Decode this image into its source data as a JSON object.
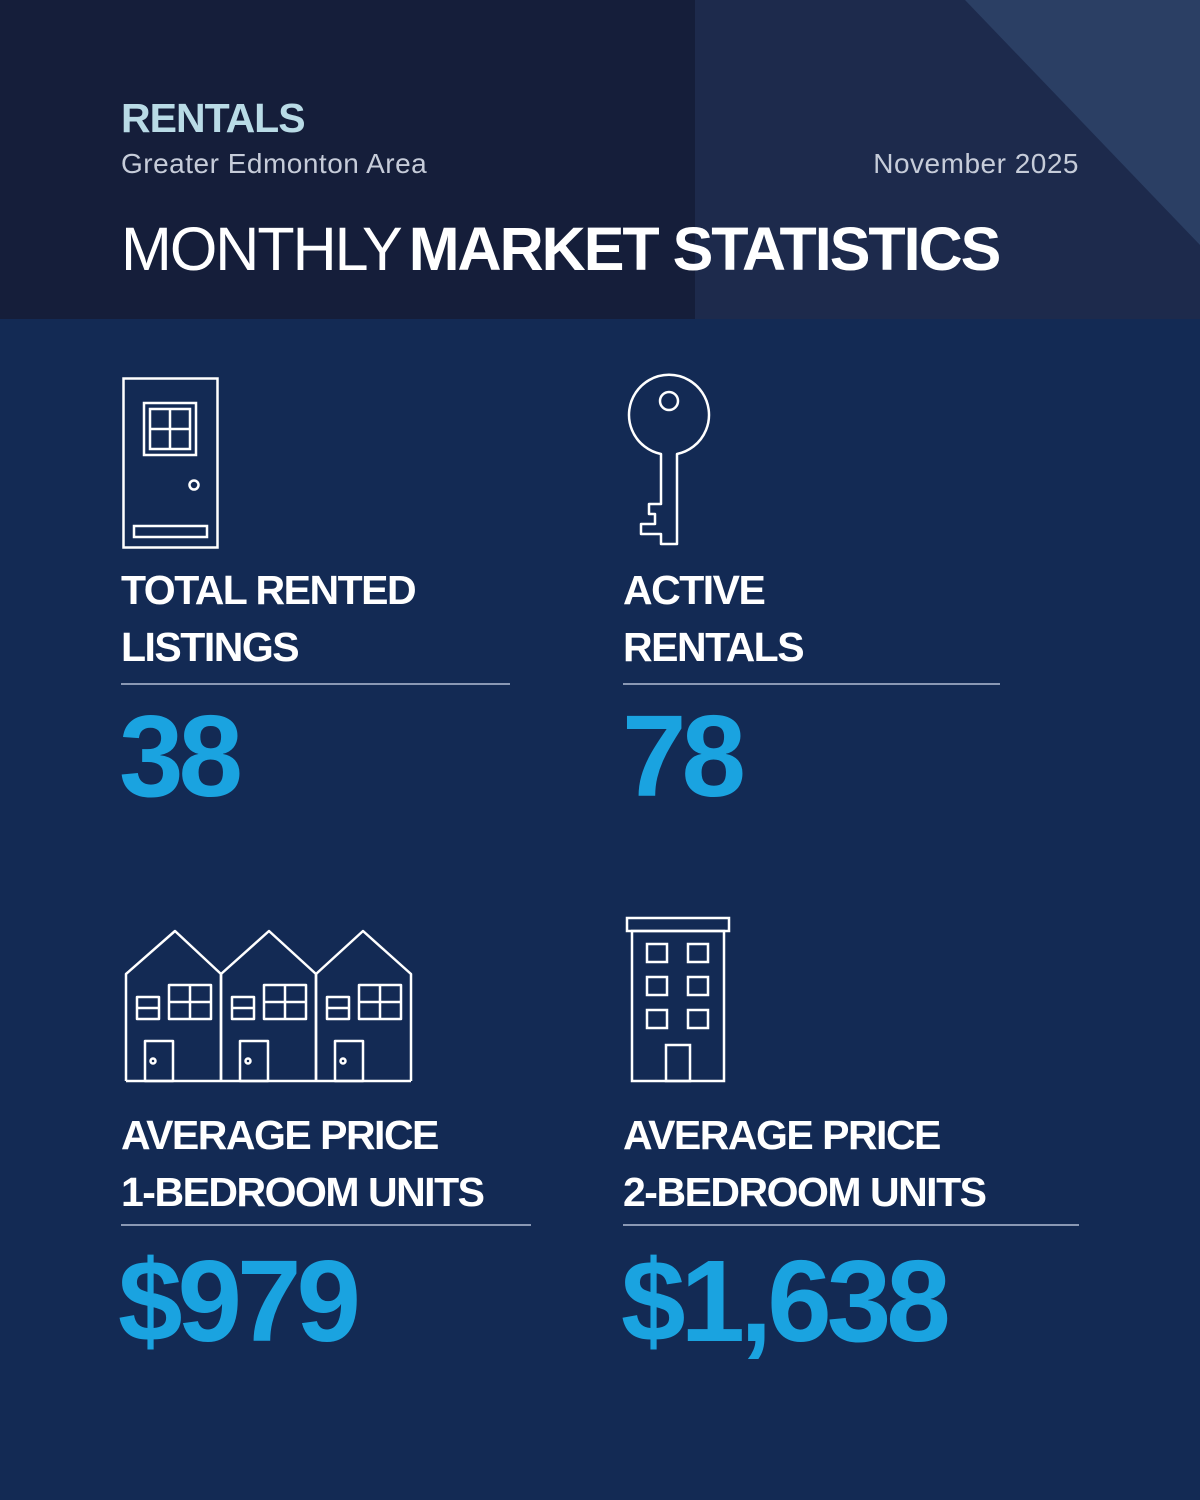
{
  "header": {
    "category": "RENTALS",
    "region": "Greater Edmonton Area",
    "date": "November 2025",
    "title_light": "MONTHLY",
    "title_bold": "MARKET STATISTICS"
  },
  "stats": [
    {
      "label_line1": "TOTAL RENTED",
      "label_line2": "LISTINGS",
      "value": "38",
      "icon": "door-icon"
    },
    {
      "label_line1": "ACTIVE",
      "label_line2": "RENTALS",
      "value": "78",
      "icon": "key-icon"
    },
    {
      "label_line1": "AVERAGE PRICE",
      "label_line2": "1-BEDROOM UNITS",
      "value": "$979",
      "icon": "townhouses-icon"
    },
    {
      "label_line1": "AVERAGE PRICE",
      "label_line2": "2-BEDROOM UNITS",
      "value": "$1,638",
      "icon": "apartment-building-icon"
    }
  ],
  "colors": {
    "background": "#132a54",
    "header_dark": "#151e3a",
    "header_panel": "#1d2a4c",
    "accent_value": "#1aa3e0",
    "category": "#b9dbe6"
  }
}
